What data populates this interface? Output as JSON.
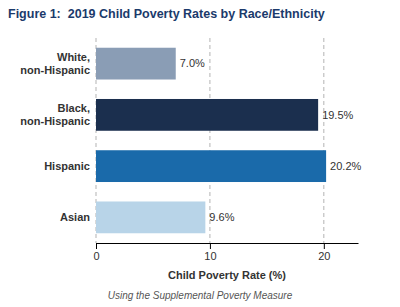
{
  "chart_data": {
    "type": "bar",
    "orientation": "horizontal",
    "title": "Figure 1:  2019 Child Poverty Rates by Race/Ethnicity",
    "subtitle": "Using the Supplemental Poverty Measure",
    "xlabel": "Child Poverty Rate (%)",
    "categories": [
      "White,\nnon-Hispanic",
      "Black,\nnon-Hispanic",
      "Hispanic",
      "Asian"
    ],
    "values": [
      7.0,
      19.5,
      20.2,
      9.6
    ],
    "value_labels": [
      "7.0%",
      "19.5%",
      "20.2%",
      "9.6%"
    ],
    "data_labels": true,
    "colors": [
      "#8a9db5",
      "#1b2f4e",
      "#1a6aaa",
      "#b8d4e8"
    ],
    "xlim": [
      0,
      23
    ],
    "xticks": [
      0,
      10,
      20
    ],
    "grid": true
  }
}
